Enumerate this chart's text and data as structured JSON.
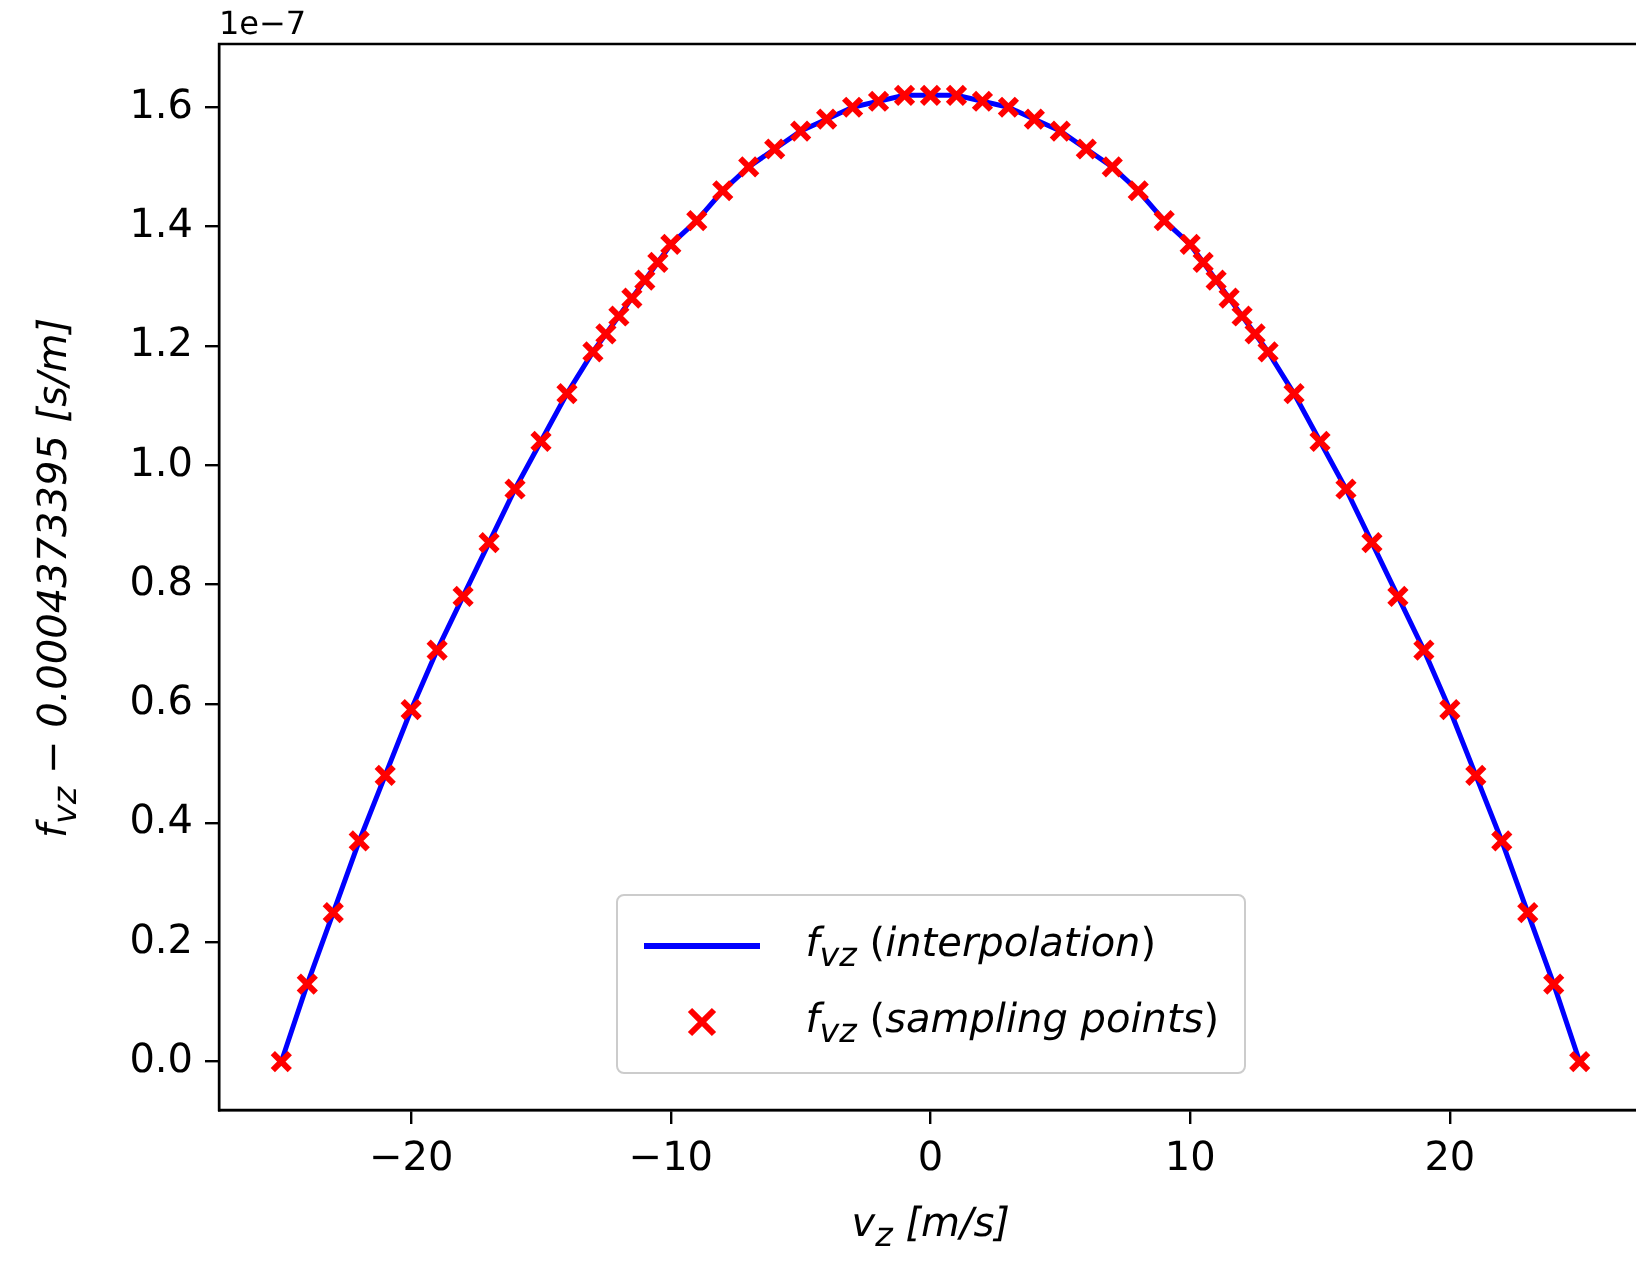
{
  "chart_data": {
    "type": "line",
    "xlabel": "v$_{z}$ [m/s]",
    "ylabel": "f$_{vz}$ − 0.0004373395 [s/m]",
    "annotations": [
      "1e−7"
    ],
    "legend": "bottom",
    "x": [
      -25,
      -24,
      -23,
      -22,
      -21,
      -20,
      -19,
      -18,
      -17,
      -16,
      -15,
      -14,
      -13,
      -12.5,
      -12,
      -11.5,
      -11,
      -10.5,
      -10,
      -9,
      -8,
      -7,
      -6,
      -5,
      -4,
      -3,
      -2,
      -1,
      0,
      1,
      2,
      3,
      4,
      5,
      6,
      7,
      8,
      9,
      10,
      10.5,
      11,
      11.5,
      12,
      12.5,
      13,
      14,
      15,
      16,
      17,
      18,
      19,
      20,
      21,
      22,
      23,
      24,
      25
    ],
    "series": [
      {
        "name": "f$_{vz}$ (interpolation)",
        "color": "#0000ff",
        "values": [
          0,
          0.13,
          0.25,
          0.37,
          0.48,
          0.59,
          0.69,
          0.78,
          0.87,
          0.96,
          1.04,
          1.12,
          1.19,
          1.22,
          1.25,
          1.28,
          1.31,
          1.34,
          1.37,
          1.41,
          1.46,
          1.5,
          1.53,
          1.56,
          1.58,
          1.6,
          1.61,
          1.62,
          1.62,
          1.62,
          1.61,
          1.6,
          1.58,
          1.56,
          1.53,
          1.5,
          1.46,
          1.41,
          1.37,
          1.34,
          1.31,
          1.28,
          1.25,
          1.22,
          1.19,
          1.12,
          1.04,
          0.96,
          0.87,
          0.78,
          0.69,
          0.59,
          0.48,
          0.37,
          0.25,
          0.13,
          0
        ]
      },
      {
        "name": "f$_{vz}$ (sampling points)",
        "type": "scatter",
        "marker": "cross",
        "color": "#ff0000",
        "values": [
          0,
          0.13,
          0.25,
          0.37,
          0.48,
          0.59,
          0.69,
          0.78,
          0.87,
          0.96,
          1.04,
          1.12,
          1.19,
          1.22,
          1.25,
          1.28,
          1.31,
          1.34,
          1.37,
          1.41,
          1.46,
          1.5,
          1.53,
          1.56,
          1.58,
          1.6,
          1.61,
          1.62,
          1.62,
          1.62,
          1.61,
          1.6,
          1.58,
          1.56,
          1.53,
          1.5,
          1.46,
          1.41,
          1.37,
          1.34,
          1.31,
          1.28,
          1.25,
          1.22,
          1.19,
          1.12,
          1.04,
          0.96,
          0.87,
          0.78,
          0.69,
          0.59,
          0.48,
          0.37,
          0.25,
          0.13,
          0
        ]
      }
    ],
    "xlim": [
      -27.4,
      27.4
    ],
    "xticks": [
      {
        "value": -20,
        "label": "−20"
      },
      {
        "value": -10,
        "label": "−10"
      },
      0,
      10,
      20
    ],
    "ylim": [
      -0.081,
      1.706
    ],
    "yticks": [
      {
        "value": 0,
        "label": "0.0"
      },
      {
        "value": 0.2,
        "label": "0.2"
      },
      {
        "value": 0.4,
        "label": "0.4"
      },
      {
        "value": 0.6,
        "label": "0.6"
      },
      {
        "value": 0.8,
        "label": "0.8"
      },
      {
        "value": 1,
        "label": "1.0"
      },
      {
        "value": 1.2,
        "label": "1.2"
      },
      {
        "value": 1.4,
        "label": "1.4"
      },
      {
        "value": 1.6,
        "label": "1.6"
      }
    ]
  }
}
